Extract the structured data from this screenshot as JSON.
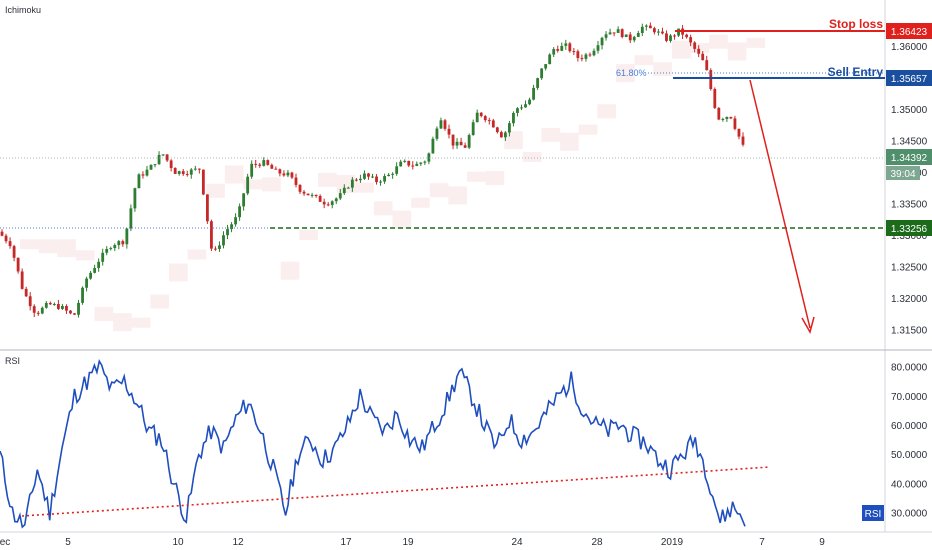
{
  "indicator_top": "Ichimoku",
  "indicator_bottom": "RSI",
  "rsi_badge": "RSI",
  "colors": {
    "up": "#26a69a",
    "down": "#ef5350",
    "body_up": "#2e7d32",
    "body_down": "#c62828",
    "rsi": "#1f4fbf",
    "stop": "#e0201c",
    "entry": "#1a4fa0",
    "support": "#1b6b1b",
    "current": "#4f8f6b",
    "cloud": "#f6d9d9",
    "trend": "#e0201c"
  },
  "chart_data": [
    {
      "type": "candlestick",
      "title": "Ichimoku",
      "x_labels": [
        "ec",
        "5",
        "10",
        "12",
        "17",
        "19",
        "24",
        "28",
        "2019",
        "7",
        "9"
      ],
      "y_ticks": [
        "1.36000",
        "1.35500",
        "1.35000",
        "1.34500",
        "1.34000",
        "1.33500",
        "1.33000",
        "1.32500",
        "1.32000",
        "1.31500"
      ],
      "ylim": [
        1.3125,
        1.3665
      ],
      "close_path": [
        1.3305,
        1.3285,
        1.321,
        1.3175,
        1.319,
        1.3185,
        1.317,
        1.323,
        1.326,
        1.3285,
        1.329,
        1.339,
        1.3405,
        1.343,
        1.34,
        1.34,
        1.3405,
        1.3265,
        1.3305,
        1.333,
        1.341,
        1.3415,
        1.34,
        1.3395,
        1.337,
        1.336,
        1.335,
        1.336,
        1.3385,
        1.3395,
        1.3385,
        1.3395,
        1.3415,
        1.341,
        1.342,
        1.349,
        1.3445,
        1.344,
        1.3495,
        1.348,
        1.3455,
        1.35,
        1.351,
        1.356,
        1.3595,
        1.36,
        1.358,
        1.359,
        1.362,
        1.3625,
        1.361,
        1.363,
        1.3625,
        1.361,
        1.3625,
        1.36,
        1.357,
        1.3485,
        1.349,
        1.344
      ],
      "levels": {
        "stop_loss": {
          "label": "Stop loss",
          "value": "1.36423"
        },
        "sell_entry": {
          "label": "Sell Entry",
          "value": "1.35657"
        },
        "fib": "61.80%",
        "current": {
          "value": "1.34392",
          "countdown": "39:04"
        },
        "support": {
          "value": "1.33256"
        }
      }
    },
    {
      "type": "line",
      "title": "RSI",
      "series": [
        {
          "values": [
            50,
            30,
            25,
            45,
            30,
            52,
            70,
            75,
            80,
            72,
            75,
            68,
            58,
            55,
            40,
            28,
            50,
            58,
            52,
            62,
            68,
            58,
            45,
            30,
            50,
            55,
            48,
            52,
            60,
            70,
            62,
            58,
            64,
            55,
            52,
            60,
            68,
            78,
            70,
            60,
            52,
            62,
            55,
            58,
            64,
            70,
            75,
            65,
            60,
            58,
            60,
            56,
            54,
            48,
            45,
            50,
            55,
            43,
            27,
            32,
            28
          ]
        }
      ],
      "y_ticks": [
        "80.0000",
        "70.0000",
        "60.0000",
        "50.0000",
        "40.0000",
        "30.0000"
      ],
      "ylim": [
        24,
        84
      ]
    }
  ]
}
